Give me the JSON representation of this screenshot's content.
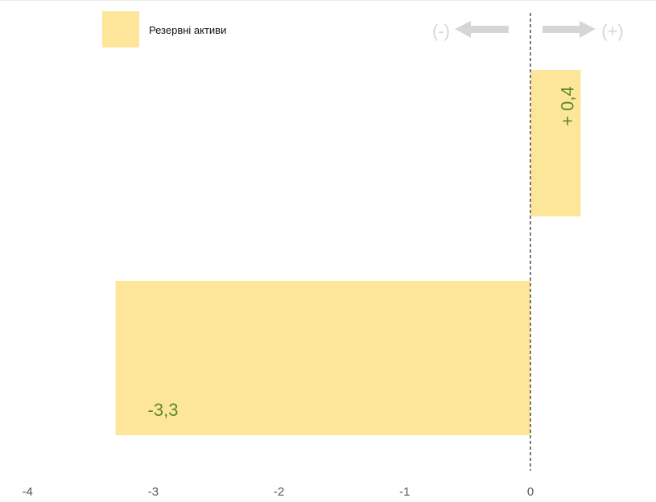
{
  "chart_data": {
    "type": "bar",
    "orientation": "horizontal",
    "categories": [
      "",
      ""
    ],
    "series": [
      {
        "name": "Резервні активи",
        "values": [
          0.4,
          -3.3
        ]
      }
    ],
    "data_labels": [
      "+ 0,4",
      "-3,3"
    ],
    "xlim": [
      -4,
      1
    ],
    "x_ticks": [
      -4,
      -3,
      -2,
      -1,
      0
    ],
    "x_tick_labels": [
      "-4",
      "-3",
      "-2",
      "-1",
      "0"
    ],
    "legend": {
      "position": "top-left",
      "label": "Резервні активи"
    },
    "direction_indicators": {
      "negative": "(-)",
      "positive": "(+)"
    },
    "zero_line": "dashed",
    "grid": false
  },
  "colors": {
    "bar": "#fde59a",
    "data_label": "#5a8a2c",
    "tick_label": "#555555",
    "indicator": "#d6d6d6",
    "zero_line": "#222222"
  }
}
